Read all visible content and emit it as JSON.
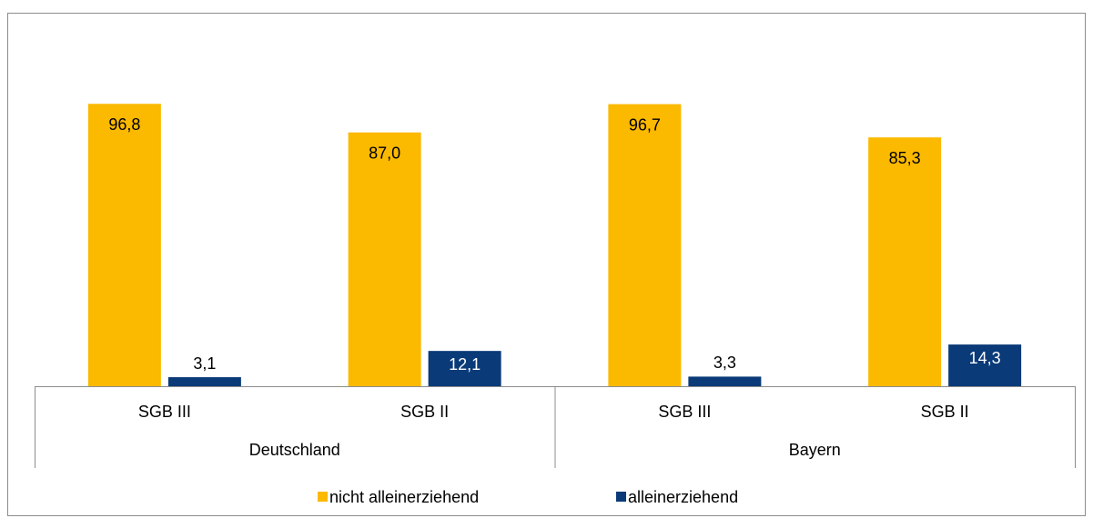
{
  "chart_data": {
    "type": "bar",
    "categories": [
      "SGB III",
      "SGB II",
      "SGB III",
      "SGB II"
    ],
    "groups": [
      {
        "name": "Deutschland",
        "span": 2
      },
      {
        "name": "Bayern",
        "span": 2
      }
    ],
    "series": [
      {
        "name": "nicht alleinerziehend",
        "color": "#fbb900",
        "values": [
          96.8,
          87.0,
          96.7,
          85.3
        ],
        "value_labels": [
          "96,8",
          "87,0",
          "96,7",
          "85,3"
        ]
      },
      {
        "name": "alleinerziehend",
        "color": "#0a3a78",
        "values": [
          3.1,
          12.1,
          3.3,
          14.3
        ],
        "value_labels": [
          "3,1",
          "12,1",
          "3,3",
          "14,3"
        ]
      }
    ],
    "ylim": [
      0,
      100
    ]
  }
}
